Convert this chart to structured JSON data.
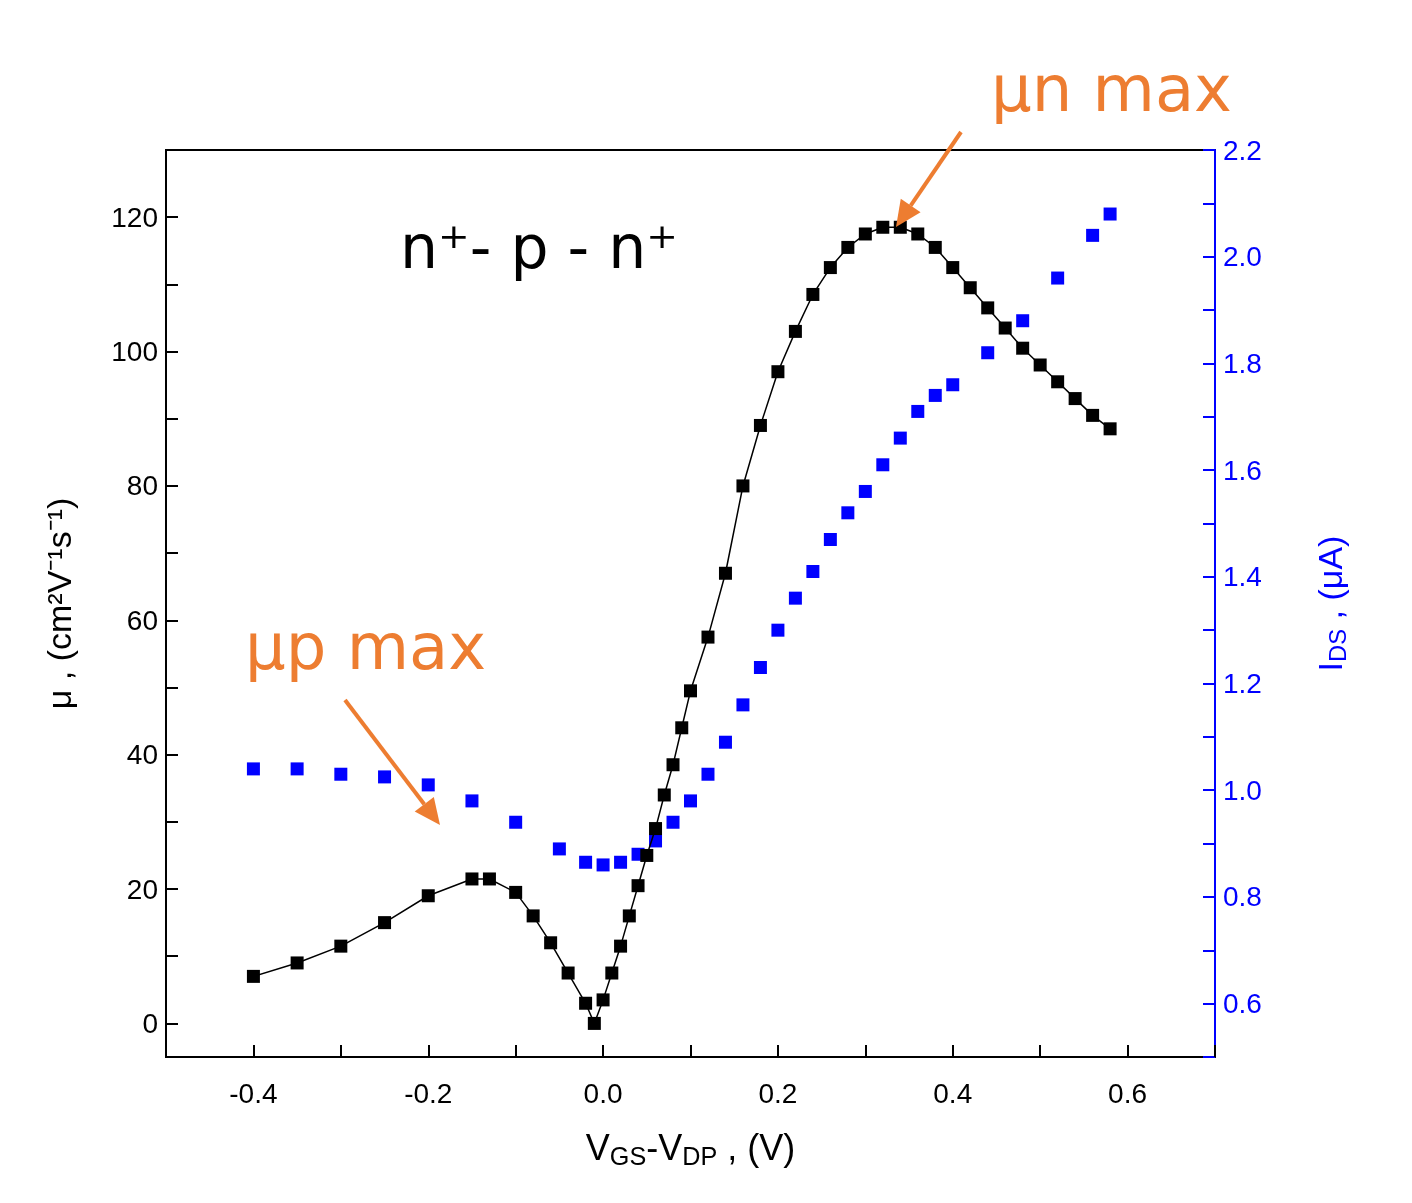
{
  "chart_data": {
    "type": "scatter",
    "xlabel": "V$_{GS}$-V$_{DP}$ , (V)",
    "ylabel": "μ , (cm²V⁻¹s⁻¹)",
    "y2label": "I$_{DS}$ , (μA)",
    "annotations": [
      "n⁺- p - n⁺",
      {
        "text": "μn max",
        "x": 0.335,
        "y": 118.5
      },
      "μp max"
    ],
    "marker": "square",
    "xlim": [
      -0.5,
      0.7
    ],
    "xticks": [
      {
        "value": -0.5,
        "label": null
      },
      -0.4,
      {
        "value": -0.3,
        "label": null
      },
      -0.2,
      {
        "value": -0.1,
        "label": null
      },
      {
        "value": 0,
        "label": "0.0"
      },
      {
        "value": 0.1,
        "label": null
      },
      0.2,
      {
        "value": 0.3,
        "label": null
      },
      0.4,
      {
        "value": 0.5,
        "label": null
      },
      0.6,
      {
        "value": 0.7,
        "label": null
      }
    ],
    "ylim": [
      -5,
      130
    ],
    "yticks": [
      0,
      {
        "value": 10,
        "label": null
      },
      20,
      {
        "value": 30,
        "label": null
      },
      40,
      {
        "value": 50,
        "label": null
      },
      60,
      {
        "value": 70,
        "label": null
      },
      80,
      {
        "value": 90,
        "label": null
      },
      100,
      {
        "value": 110,
        "label": null
      },
      120
    ],
    "y2lim": [
      0.5,
      2.2
    ],
    "y2ticks": [
      {
        "value": 0.5,
        "label": null
      },
      0.6,
      {
        "value": 0.7,
        "label": null
      },
      0.8,
      {
        "value": 0.9,
        "label": null
      },
      {
        "value": 1,
        "label": "1.0"
      },
      {
        "value": 1.1,
        "label": null
      },
      1.2,
      {
        "value": 1.3,
        "label": null
      },
      1.4,
      {
        "value": 1.5,
        "label": null
      },
      1.6,
      {
        "value": 1.7,
        "label": null
      },
      1.8,
      {
        "value": 1.9,
        "label": null
      },
      {
        "value": 2,
        "label": "2.0"
      },
      {
        "value": 2.1,
        "label": null
      },
      2.2
    ],
    "series": [
      {
        "type": "line",
        "color": "#000000",
        "x": [
          -0.4,
          -0.35,
          -0.3,
          -0.25,
          -0.2,
          -0.15,
          -0.13,
          -0.1,
          -0.08,
          -0.06,
          -0.04,
          -0.02,
          -0.01,
          0,
          0.01,
          0.02,
          0.03,
          0.04,
          0.05,
          0.06,
          0.07,
          0.08,
          0.09,
          0.1,
          0.12,
          0.14,
          0.16,
          0.18,
          0.2,
          0.22,
          0.24,
          0.26,
          0.28,
          0.3,
          0.32,
          0.34,
          0.36,
          0.38,
          0.4,
          0.42,
          0.44,
          0.46,
          0.48,
          0.5,
          0.52,
          0.54,
          0.56,
          0.58
        ],
        "values": [
          7,
          9,
          11.5,
          15,
          19,
          21.5,
          21.5,
          19.5,
          16,
          12,
          7.5,
          3,
          0,
          3.5,
          7.5,
          11.5,
          16,
          20.5,
          25,
          29,
          34,
          38.5,
          44,
          49.5,
          57.5,
          67,
          80,
          89,
          97,
          103,
          108.5,
          112.5,
          115.5,
          117.5,
          118.5,
          118.5,
          117.5,
          115.5,
          112.5,
          109.5,
          106.5,
          103.5,
          100.5,
          98,
          95.5,
          93,
          90.5,
          88.5
        ]
      },
      {
        "color": "#0000ff",
        "axis": "y2",
        "x": [
          -0.4,
          -0.35,
          -0.3,
          -0.25,
          -0.2,
          -0.15,
          -0.1,
          -0.05,
          -0.02,
          0,
          0.02,
          0.04,
          0.06,
          0.08,
          0.1,
          0.12,
          0.14,
          0.16,
          0.18,
          0.2,
          0.22,
          0.24,
          0.26,
          0.28,
          0.3,
          0.32,
          0.34,
          0.36,
          0.38,
          0.4,
          0.44,
          0.48,
          0.52,
          0.56,
          0.58
        ],
        "values": [
          1.04,
          1.04,
          1.03,
          1.025,
          1.01,
          0.98,
          0.94,
          0.89,
          0.865,
          0.86,
          0.865,
          0.88,
          0.905,
          0.94,
          0.98,
          1.03,
          1.09,
          1.16,
          1.23,
          1.3,
          1.36,
          1.41,
          1.47,
          1.52,
          1.56,
          1.61,
          1.66,
          1.71,
          1.74,
          1.76,
          1.82,
          1.88,
          1.96,
          2.04,
          2.08
        ]
      }
    ]
  }
}
